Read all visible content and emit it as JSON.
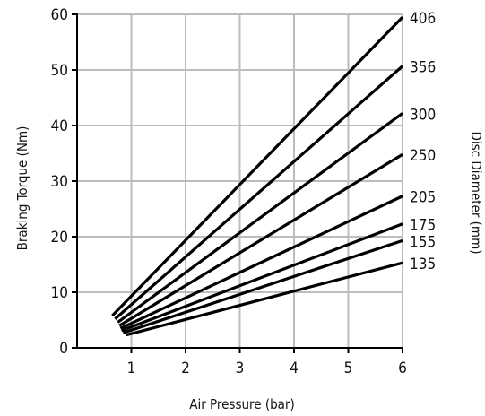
{
  "chart_data": {
    "type": "line",
    "xlabel": "Air Pressure (bar)",
    "ylabel": "Braking Torque (Nm)",
    "y2label": "Disc Diameter (mm)",
    "xlim": [
      0,
      6
    ],
    "ylim": [
      0,
      60
    ],
    "xticks": [
      1,
      2,
      3,
      4,
      5,
      6
    ],
    "yticks": [
      0,
      10,
      20,
      30,
      40,
      50,
      60
    ],
    "grid": true,
    "series": [
      {
        "name": "406",
        "x": [
          0.65,
          6
        ],
        "y": [
          5.8,
          59.5
        ]
      },
      {
        "name": "356",
        "x": [
          0.7,
          6
        ],
        "y": [
          5.2,
          50.7
        ]
      },
      {
        "name": "300",
        "x": [
          0.75,
          6
        ],
        "y": [
          4.6,
          42.2
        ]
      },
      {
        "name": "250",
        "x": [
          0.78,
          6
        ],
        "y": [
          4.0,
          34.8
        ]
      },
      {
        "name": "205",
        "x": [
          0.8,
          6
        ],
        "y": [
          3.5,
          27.3
        ]
      },
      {
        "name": "175",
        "x": [
          0.82,
          6
        ],
        "y": [
          3.1,
          22.3
        ]
      },
      {
        "name": "155",
        "x": [
          0.85,
          6
        ],
        "y": [
          2.7,
          19.3
        ]
      },
      {
        "name": "135",
        "x": [
          0.9,
          6
        ],
        "y": [
          2.3,
          15.3
        ]
      }
    ],
    "colors": {
      "line": "#000000",
      "grid": "#bdbdbd",
      "axis": "#000000"
    }
  }
}
